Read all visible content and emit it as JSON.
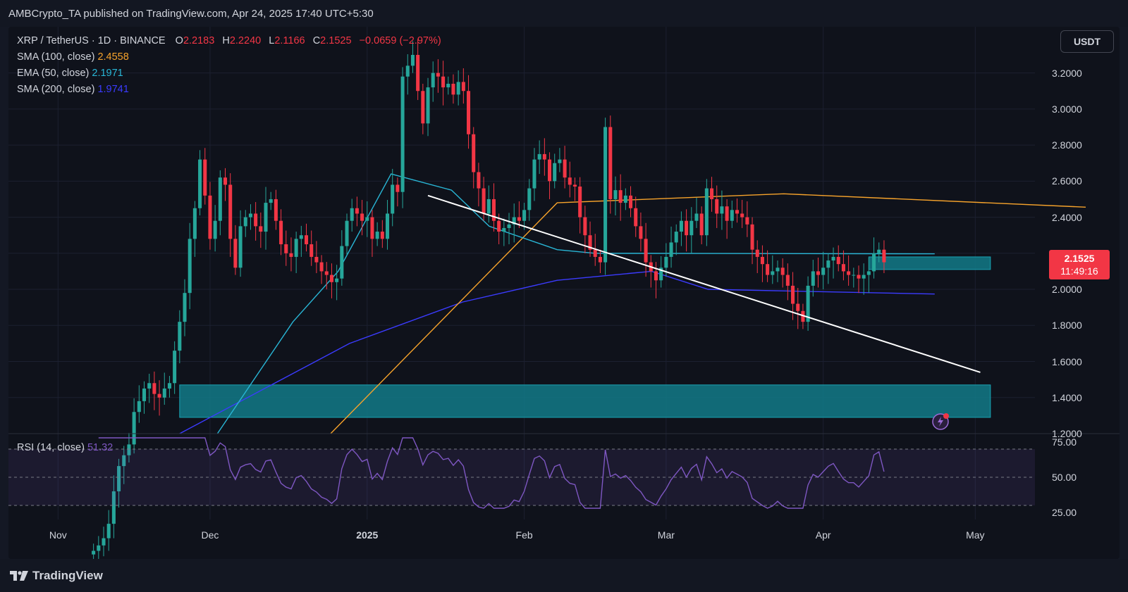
{
  "header": {
    "published": "AMBCrypto_TA published on TradingView.com, Apr 24, 2025 17:40 UTC+5:30"
  },
  "legend": {
    "symbol": "XRP / TetherUS · 1D · BINANCE",
    "o_label": "O",
    "o_val": "2.2183",
    "h_label": "H",
    "h_val": "2.2240",
    "l_label": "L",
    "l_val": "2.1166",
    "c_label": "C",
    "c_val": "2.1525",
    "change": "−0.0659 (−2.97%)",
    "sma100_label": "SMA (100, close)",
    "sma100_val": "2.4558",
    "ema50_label": "EMA (50, close)",
    "ema50_val": "2.1971",
    "sma200_label": "SMA (200, close)",
    "sma200_val": "1.9741"
  },
  "currency_button": "USDT",
  "price_axis": [
    "3.2000",
    "3.0000",
    "2.8000",
    "2.6000",
    "2.4000",
    "2.2000",
    "2.0000",
    "1.8000",
    "1.6000",
    "1.4000",
    "1.2000"
  ],
  "last_price": {
    "price": "2.1525",
    "countdown": "11:49:16"
  },
  "rsi": {
    "label": "RSI (14, close)",
    "value": "51.32",
    "axis": [
      "75.00",
      "50.00",
      "25.00"
    ]
  },
  "time_axis": [
    "Nov",
    "Dec",
    "2025",
    "Feb",
    "Mar",
    "Apr",
    "May"
  ],
  "footer": {
    "brand": "TradingView"
  },
  "colors": {
    "up": "#26a69a",
    "down": "#f23645",
    "sma100": "#f7a32b",
    "ema50": "#29b6d6",
    "sma200": "#3b3bff",
    "zone": "#127a87",
    "rsi": "#7e57c2",
    "trendline": "#ffffff"
  },
  "chart_data": {
    "type": "candlestick",
    "title": "XRP / TetherUS · 1D · BINANCE",
    "x_range": [
      "Oct 25, 2024",
      "May 10, 2025"
    ],
    "y_range": [
      1.2,
      3.3
    ],
    "candles_range_start": "Nov 8, 2024",
    "close_series": [
      0.55,
      0.58,
      0.62,
      0.7,
      0.88,
      1.02,
      1.08,
      1.14,
      1.32,
      1.38,
      1.45,
      1.48,
      1.42,
      1.4,
      1.45,
      1.48,
      1.66,
      1.82,
      1.98,
      2.28,
      2.45,
      2.72,
      2.52,
      2.28,
      2.38,
      2.62,
      2.58,
      2.28,
      2.12,
      2.35,
      2.4,
      2.42,
      2.35,
      2.32,
      2.48,
      2.5,
      2.38,
      2.25,
      2.2,
      2.18,
      2.28,
      2.3,
      2.25,
      2.18,
      2.15,
      2.1,
      2.08,
      2.04,
      2.06,
      2.24,
      2.38,
      2.45,
      2.42,
      2.38,
      2.4,
      2.28,
      2.32,
      2.28,
      2.42,
      2.58,
      2.54,
      3.18,
      3.24,
      3.3,
      3.1,
      2.92,
      3.12,
      3.2,
      3.18,
      3.12,
      3.14,
      3.08,
      3.15,
      3.1,
      2.86,
      2.65,
      2.56,
      2.42,
      2.5,
      2.38,
      2.32,
      2.34,
      2.36,
      2.4,
      2.38,
      2.44,
      2.56,
      2.72,
      2.75,
      2.72,
      2.6,
      2.7,
      2.72,
      2.62,
      2.58,
      2.57,
      2.4,
      2.3,
      2.22,
      2.18,
      2.15,
      2.9,
      2.5,
      2.55,
      2.48,
      2.52,
      2.45,
      2.35,
      2.28,
      2.15,
      2.1,
      2.05,
      2.12,
      2.18,
      2.26,
      2.32,
      2.38,
      2.3,
      2.38,
      2.42,
      2.3,
      2.56,
      2.5,
      2.42,
      2.46,
      2.38,
      2.44,
      2.42,
      2.4,
      2.36,
      2.22,
      2.18,
      2.14,
      2.08,
      2.1,
      2.12,
      2.08,
      2.02,
      1.92,
      1.88,
      1.82,
      2.02,
      2.1,
      2.08,
      2.12,
      2.16,
      2.18,
      2.14,
      2.1,
      2.08,
      2.08,
      2.06,
      2.08,
      2.1,
      2.2,
      2.22,
      2.15
    ],
    "sma100": [
      [
        0.4,
        1.2
      ],
      [
        1.0,
        2.48
      ],
      [
        1.6,
        2.53
      ],
      [
        2.4,
        2.4558
      ]
    ],
    "ema50": [
      [
        0.1,
        1.2
      ],
      [
        0.3,
        1.82
      ],
      [
        0.42,
        2.1
      ],
      [
        0.56,
        2.64
      ],
      [
        0.72,
        2.55
      ],
      [
        0.82,
        2.35
      ],
      [
        1.0,
        2.22
      ],
      [
        1.1,
        2.2
      ],
      [
        2.0,
        2.1971
      ]
    ],
    "sma200": [
      [
        0.0,
        1.2
      ],
      [
        0.45,
        1.7
      ],
      [
        0.75,
        1.93
      ],
      [
        1.0,
        2.05
      ],
      [
        1.25,
        2.1
      ],
      [
        1.4,
        2.0
      ],
      [
        2.0,
        1.9741
      ]
    ],
    "trendline": {
      "from": [
        "Jan 13, 2025",
        2.52
      ],
      "to": [
        "May 2, 2025",
        1.54
      ]
    },
    "zones": [
      {
        "from": "Nov 25, 2024",
        "to": "May 4, 2025",
        "low": 1.29,
        "high": 1.47
      },
      {
        "from": "Apr 10, 2025",
        "to": "May 4, 2025",
        "low": 2.11,
        "high": 2.18
      }
    ],
    "rsi": {
      "label": "RSI (14, close)",
      "current": 51.32,
      "overbought": 70,
      "oversold": 30,
      "ylim": [
        20,
        80
      ]
    }
  }
}
